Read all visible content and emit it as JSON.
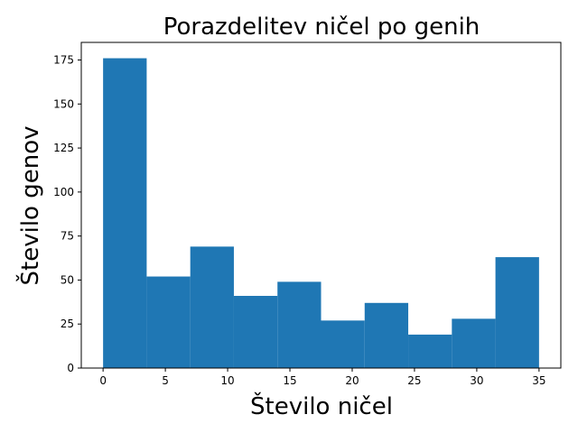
{
  "chart_data": {
    "type": "bar",
    "title": "Porazdelitev ničel po genih",
    "xlabel": "Število ničel",
    "ylabel": "Število genov",
    "bin_edges": [
      0,
      3.5,
      7,
      10.5,
      14,
      17.5,
      21,
      24.5,
      28,
      31.5,
      35
    ],
    "values": [
      176,
      52,
      69,
      41,
      49,
      27,
      37,
      19,
      28,
      63
    ],
    "xlim": [
      -1.75,
      36.75
    ],
    "ylim": [
      0,
      185
    ],
    "x_ticks": [
      0,
      5,
      10,
      15,
      20,
      25,
      30,
      35
    ],
    "y_ticks": [
      0,
      25,
      50,
      75,
      100,
      125,
      150,
      175
    ],
    "bar_color": "#1f77b4",
    "grid": false
  }
}
